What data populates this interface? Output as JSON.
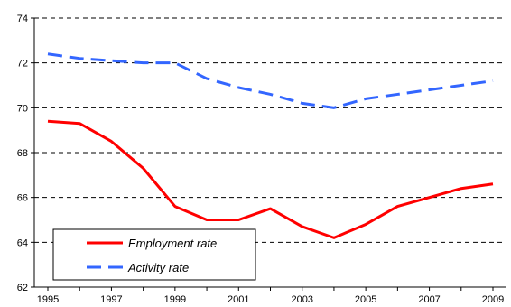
{
  "chart_data": {
    "type": "line",
    "title": "",
    "xlabel": "",
    "ylabel": "",
    "x": [
      1995,
      1996,
      1997,
      1998,
      1999,
      2000,
      2001,
      2002,
      2003,
      2004,
      2005,
      2006,
      2007,
      2008,
      2009
    ],
    "x_tick_labels": [
      "1995",
      "1997",
      "1999",
      "2001",
      "2003",
      "2005",
      "2007",
      "2009"
    ],
    "y_tick_labels": [
      "62",
      "64",
      "66",
      "68",
      "70",
      "72",
      "74"
    ],
    "xlim": [
      1995,
      2009
    ],
    "ylim": [
      62,
      74
    ],
    "grid": "horizontal-dashed",
    "legend_position": "bottom-left",
    "series": [
      {
        "name": "Employment rate",
        "color": "#ff0000",
        "line_style": "solid",
        "values": [
          69.4,
          69.3,
          68.5,
          67.3,
          65.6,
          65.0,
          65.0,
          65.5,
          64.7,
          64.2,
          64.8,
          65.6,
          66.0,
          66.4,
          66.6
        ]
      },
      {
        "name": "Activity rate",
        "color": "#3366ff",
        "line_style": "dashed",
        "values": [
          72.4,
          72.2,
          72.1,
          72.0,
          72.0,
          71.3,
          70.9,
          70.6,
          70.2,
          70.0,
          70.4,
          70.6,
          70.8,
          71.0,
          71.2
        ]
      }
    ]
  }
}
